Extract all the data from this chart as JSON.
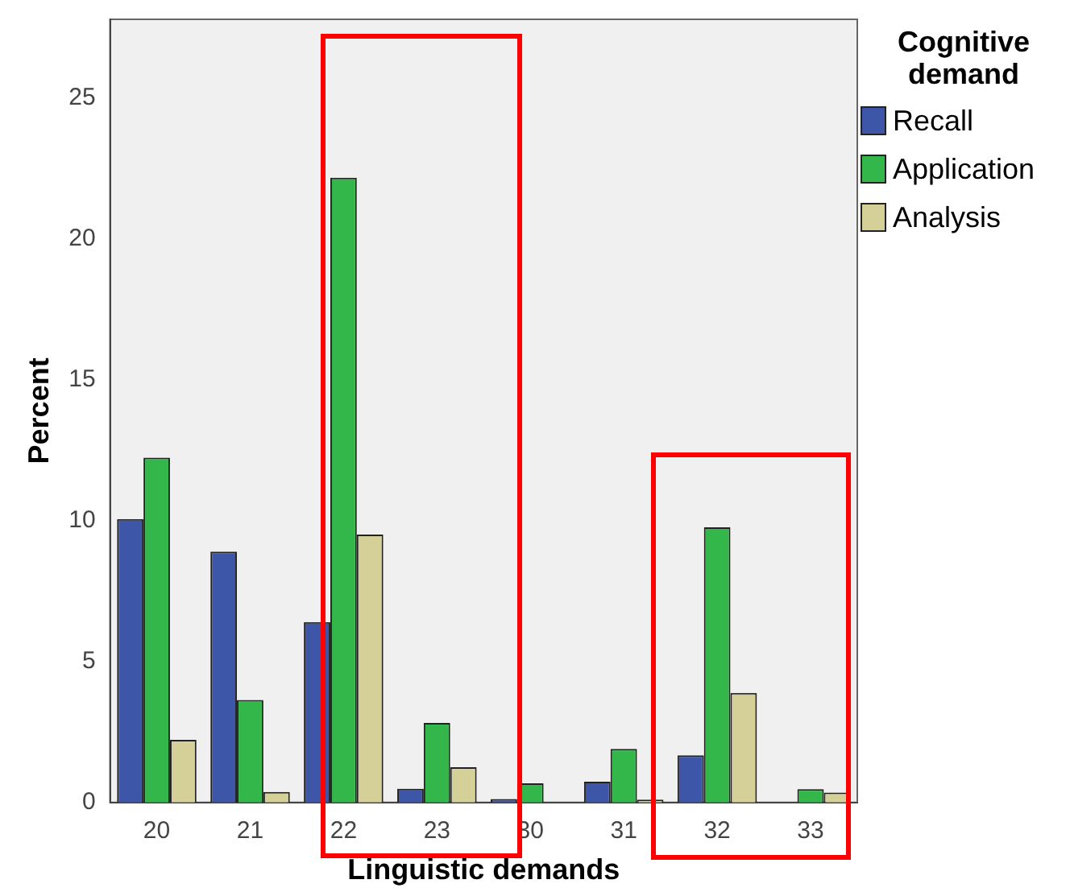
{
  "chart_data": {
    "type": "bar",
    "xlabel": "Linguistic demands",
    "ylabel": "Percent",
    "legend_title": "Cognitive demand",
    "legend": "top right",
    "grid": false,
    "categories": [
      "20",
      "21",
      "22",
      "23",
      "30",
      "31",
      "32",
      "33"
    ],
    "ylim": [
      0,
      27.8
    ],
    "yticks": [
      0,
      5,
      10,
      15,
      20,
      25
    ],
    "series": [
      {
        "name": "Recall",
        "color": "#3e56a8",
        "values": [
          10.06,
          8.9,
          6.4,
          0.49,
          0.12,
          0.74,
          1.67,
          null
        ]
      },
      {
        "name": "Application",
        "color": "#33b74a",
        "values": [
          12.24,
          3.64,
          22.18,
          2.82,
          0.68,
          1.9,
          9.77,
          0.47
        ]
      },
      {
        "name": "Analysis",
        "color": "#d5cf98",
        "values": [
          2.22,
          0.37,
          9.51,
          1.25,
          null,
          0.1,
          3.89,
          0.35
        ]
      }
    ]
  }
}
